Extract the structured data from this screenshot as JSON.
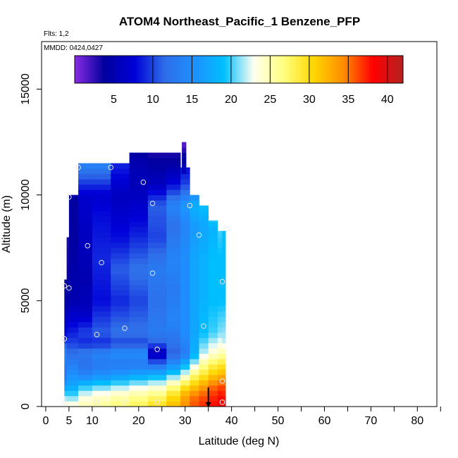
{
  "chart_data": {
    "type": "heatmap",
    "title": "ATOM4 Northeast_Pacific_1 Benzene_PFP",
    "note_flights": "Flts: 1,2",
    "note_dates": "MMDD: 0424,0427",
    "xlabel": "Latitude (deg N)",
    "ylabel": "Altitude (m)",
    "xlim": [
      0,
      85
    ],
    "ylim": [
      0,
      17500
    ],
    "x_major_ticks": [
      0,
      5,
      10,
      20,
      30,
      40,
      50,
      60,
      70,
      80
    ],
    "x_minor_ticks": [
      15,
      25,
      35,
      45,
      55,
      65,
      75,
      85
    ],
    "y_ticks": [
      0,
      5000,
      10000,
      15000
    ],
    "colorbar": {
      "range": [
        0,
        42
      ],
      "ticks": [
        5,
        10,
        15,
        20,
        25,
        30,
        35,
        40
      ],
      "stops": [
        "#8a2be2",
        "#00009e",
        "#0000d8",
        "#2f6ce8",
        "#1e90ff",
        "#00bfff",
        "#fffff0",
        "#ffff80",
        "#ffd700",
        "#ff8c00",
        "#ff0000",
        "#b22222"
      ]
    },
    "columns": [
      {
        "x0": 4,
        "x1": 7,
        "y_top": 6000,
        "profile": [
          [
            0,
            24
          ],
          [
            500,
            21
          ],
          [
            1000,
            16
          ],
          [
            1500,
            12
          ],
          [
            2500,
            14
          ],
          [
            3500,
            7
          ],
          [
            5000,
            4
          ],
          [
            6000,
            4
          ]
        ]
      },
      {
        "x0": 4.5,
        "x1": 6,
        "y_top": 8000,
        "profile": [
          [
            0,
            24
          ],
          [
            1000,
            17
          ],
          [
            3000,
            10
          ],
          [
            5000,
            4
          ],
          [
            8000,
            3
          ]
        ]
      },
      {
        "x0": 5,
        "x1": 7,
        "y_top": 10000,
        "profile": [
          [
            0,
            24
          ],
          [
            1000,
            17
          ],
          [
            3000,
            10
          ],
          [
            5000,
            5
          ],
          [
            8000,
            4
          ],
          [
            10000,
            4
          ]
        ]
      },
      {
        "x0": 7,
        "x1": 10,
        "y_top": 11500,
        "profile": [
          [
            0,
            25
          ],
          [
            500,
            23
          ],
          [
            1000,
            19
          ],
          [
            1500,
            14
          ],
          [
            2000,
            12
          ],
          [
            2500,
            13
          ],
          [
            3000,
            9
          ],
          [
            3500,
            10
          ],
          [
            4500,
            6
          ],
          [
            6000,
            5
          ],
          [
            8000,
            6
          ],
          [
            10000,
            7
          ],
          [
            11500,
            14
          ]
        ]
      },
      {
        "x0": 10,
        "x1": 14,
        "y_top": 11500,
        "profile": [
          [
            0,
            26
          ],
          [
            500,
            24
          ],
          [
            1000,
            20
          ],
          [
            1500,
            15
          ],
          [
            2000,
            13
          ],
          [
            2500,
            14
          ],
          [
            3000,
            9
          ],
          [
            3500,
            11
          ],
          [
            5000,
            8
          ],
          [
            7000,
            9
          ],
          [
            9000,
            8
          ],
          [
            10000,
            7
          ],
          [
            11500,
            14
          ]
        ]
      },
      {
        "x0": 14,
        "x1": 18,
        "y_top": 11500,
        "profile": [
          [
            0,
            27
          ],
          [
            500,
            25
          ],
          [
            1000,
            21
          ],
          [
            1500,
            16
          ],
          [
            2000,
            13
          ],
          [
            2500,
            15
          ],
          [
            3000,
            10
          ],
          [
            3500,
            12
          ],
          [
            5000,
            9
          ],
          [
            6500,
            11
          ],
          [
            8000,
            8
          ],
          [
            10000,
            6
          ],
          [
            11500,
            9
          ]
        ]
      },
      {
        "x0": 18,
        "x1": 22,
        "y_top": 12000,
        "profile": [
          [
            0,
            28
          ],
          [
            500,
            26
          ],
          [
            1000,
            22
          ],
          [
            1500,
            17
          ],
          [
            2000,
            13
          ],
          [
            2500,
            15
          ],
          [
            3000,
            10
          ],
          [
            3500,
            12
          ],
          [
            5000,
            10
          ],
          [
            6500,
            12
          ],
          [
            8000,
            9
          ],
          [
            10000,
            6
          ],
          [
            11500,
            5
          ],
          [
            12000,
            4
          ]
        ]
      },
      {
        "x0": 22,
        "x1": 26,
        "y_top": 12000,
        "profile": [
          [
            0,
            30
          ],
          [
            500,
            27
          ],
          [
            1000,
            23
          ],
          [
            1500,
            18
          ],
          [
            2000,
            12
          ],
          [
            2500,
            5
          ],
          [
            3000,
            11
          ],
          [
            3500,
            13
          ],
          [
            5000,
            12
          ],
          [
            6500,
            13
          ],
          [
            8000,
            10
          ],
          [
            9500,
            11
          ],
          [
            10500,
            6
          ],
          [
            11500,
            4
          ],
          [
            12000,
            3
          ]
        ]
      },
      {
        "x0": 26,
        "x1": 29,
        "y_top": 12000,
        "profile": [
          [
            0,
            32
          ],
          [
            500,
            30
          ],
          [
            1000,
            26
          ],
          [
            1500,
            20
          ],
          [
            2000,
            15
          ],
          [
            2500,
            11
          ],
          [
            3000,
            12
          ],
          [
            4000,
            14
          ],
          [
            5500,
            13
          ],
          [
            7000,
            14
          ],
          [
            8500,
            12
          ],
          [
            9500,
            14
          ],
          [
            10500,
            8
          ],
          [
            11500,
            4
          ],
          [
            12000,
            3
          ]
        ]
      },
      {
        "x0": 29,
        "x1": 31,
        "y_top": 11300,
        "profile": [
          [
            0,
            34
          ],
          [
            500,
            33
          ],
          [
            1000,
            29
          ],
          [
            1500,
            23
          ],
          [
            2000,
            18
          ],
          [
            2500,
            13
          ],
          [
            3500,
            15
          ],
          [
            5000,
            15
          ],
          [
            7000,
            15
          ],
          [
            8500,
            14
          ],
          [
            9500,
            16
          ],
          [
            10500,
            10
          ],
          [
            11300,
            8
          ]
        ]
      },
      {
        "x0": 31,
        "x1": 33,
        "y_top": 10000,
        "profile": [
          [
            0,
            36
          ],
          [
            500,
            35
          ],
          [
            1000,
            31
          ],
          [
            1500,
            27
          ],
          [
            2000,
            22
          ],
          [
            2500,
            18
          ],
          [
            3500,
            17
          ],
          [
            5000,
            17
          ],
          [
            7000,
            17
          ],
          [
            8500,
            16
          ],
          [
            9500,
            18
          ],
          [
            10000,
            15
          ]
        ]
      },
      {
        "x0": 33,
        "x1": 35,
        "y_top": 9500,
        "profile": [
          [
            0,
            37
          ],
          [
            500,
            36
          ],
          [
            1000,
            33
          ],
          [
            1500,
            29
          ],
          [
            2000,
            26
          ],
          [
            2500,
            22
          ],
          [
            3500,
            19
          ],
          [
            5000,
            18
          ],
          [
            7000,
            18
          ],
          [
            8500,
            17
          ],
          [
            9500,
            19
          ]
        ]
      },
      {
        "x0": 35,
        "x1": 37,
        "y_top": 8800,
        "profile": [
          [
            0,
            38
          ],
          [
            500,
            37
          ],
          [
            1000,
            35
          ],
          [
            1500,
            31
          ],
          [
            2000,
            28
          ],
          [
            2500,
            24
          ],
          [
            3500,
            20
          ],
          [
            5000,
            19
          ],
          [
            7000,
            19
          ],
          [
            8500,
            18
          ],
          [
            8800,
            20
          ]
        ]
      },
      {
        "x0": 37,
        "x1": 38,
        "y_top": 8300,
        "profile": [
          [
            0,
            39
          ],
          [
            500,
            38
          ],
          [
            1000,
            36
          ],
          [
            1500,
            32
          ],
          [
            2000,
            29
          ],
          [
            2500,
            25
          ],
          [
            3500,
            21
          ],
          [
            5000,
            19
          ],
          [
            7000,
            19
          ],
          [
            8300,
            20
          ]
        ]
      },
      {
        "x0": 38,
        "x1": 38.7,
        "y_top": 8300,
        "profile": [
          [
            0,
            39
          ],
          [
            1000,
            36
          ],
          [
            2000,
            29
          ],
          [
            3000,
            22
          ],
          [
            5000,
            19
          ],
          [
            8300,
            19
          ]
        ]
      },
      {
        "x0": 29.3,
        "x1": 30.2,
        "y_top": 12500,
        "profile": [
          [
            11000,
            6
          ],
          [
            11800,
            4
          ],
          [
            12500,
            1
          ]
        ]
      }
    ],
    "samples": [
      {
        "x": 4,
        "y": 200
      },
      {
        "x": 4,
        "y": 3200
      },
      {
        "x": 4,
        "y": 5700
      },
      {
        "x": 5,
        "y": 5600
      },
      {
        "x": 5,
        "y": 9900
      },
      {
        "x": 7,
        "y": 11300
      },
      {
        "x": 9,
        "y": 7600
      },
      {
        "x": 11,
        "y": 200
      },
      {
        "x": 11,
        "y": 3400
      },
      {
        "x": 12,
        "y": 6800
      },
      {
        "x": 14,
        "y": 11300
      },
      {
        "x": 17,
        "y": 3700
      },
      {
        "x": 17,
        "y": 200
      },
      {
        "x": 21,
        "y": 10600
      },
      {
        "x": 23,
        "y": 6300
      },
      {
        "x": 23,
        "y": 9600
      },
      {
        "x": 24,
        "y": 2700
      },
      {
        "x": 24,
        "y": 200
      },
      {
        "x": 31,
        "y": 9500
      },
      {
        "x": 33,
        "y": 8100
      },
      {
        "x": 34,
        "y": 3800
      },
      {
        "x": 38,
        "y": 200
      },
      {
        "x": 38,
        "y": 1200
      },
      {
        "x": 38,
        "y": 5900
      },
      {
        "x": 39,
        "y": 8400
      }
    ],
    "arrow": {
      "x": 35,
      "y_from": 700,
      "y_to": 0
    }
  }
}
